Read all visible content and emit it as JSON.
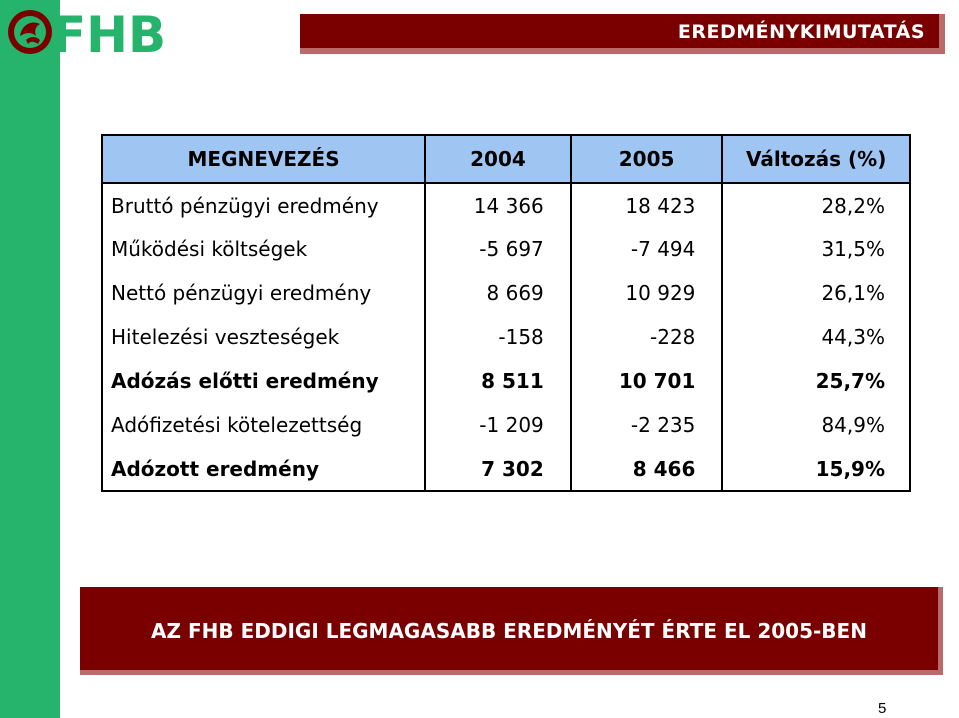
{
  "header": {
    "logo_text": "FHB",
    "title": "EREDMÉNYKIMUTATÁS"
  },
  "table": {
    "columns": [
      "MEGNEVEZÉS",
      "2004",
      "2005",
      "Változás (%)"
    ],
    "rows": [
      {
        "name": "Bruttó pénzügyi eredmény",
        "y2004": "14 366",
        "y2005": "18 423",
        "change": "28,2%",
        "bold": false
      },
      {
        "name": "Működési költségek",
        "y2004": "-5 697",
        "y2005": "-7 494",
        "change": "31,5%",
        "bold": false
      },
      {
        "name": "Nettó pénzügyi eredmény",
        "y2004": "8 669",
        "y2005": "10 929",
        "change": "26,1%",
        "bold": false
      },
      {
        "name": "Hitelezési veszteségek",
        "y2004": "-158",
        "y2005": "-228",
        "change": "44,3%",
        "bold": false
      },
      {
        "name": "Adózás előtti eredmény",
        "y2004": "8 511",
        "y2005": "10 701",
        "change": "25,7%",
        "bold": true
      },
      {
        "name": "Adófizetési kötelezettség",
        "y2004": "-1 209",
        "y2005": "-2 235",
        "change": "84,9%",
        "bold": false
      },
      {
        "name": "Adózott eredmény",
        "y2004": "7 302",
        "y2005": "8 466",
        "change": "15,9%",
        "bold": true
      }
    ]
  },
  "footer": {
    "banner_text": "AZ FHB EDDIGI LEGMAGASABB EREDMÉNYÉT ÉRTE EL 2005-BEN",
    "page_number": "5"
  },
  "colors": {
    "green": "#26b36b",
    "dark_red": "#7a0000",
    "header_blue": "#9fc5f2"
  }
}
